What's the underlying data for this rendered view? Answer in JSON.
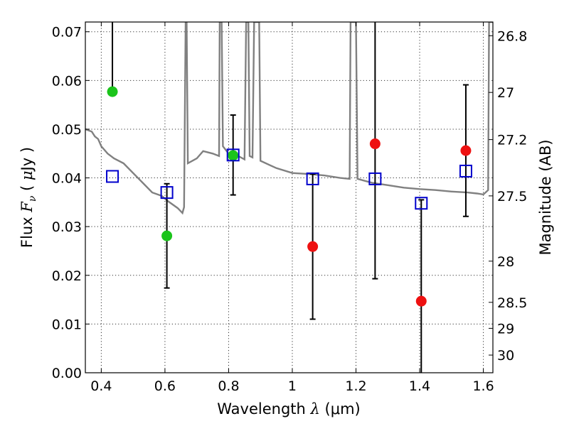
{
  "chart_data": {
    "type": "scatter",
    "xlabel": "Wavelength  λ (μm)",
    "xlabel_parts": {
      "text": "Wavelength  ",
      "symbol": "λ",
      "unit": "(μm)"
    },
    "ylabel": "Flux  Fν  ( μJy )",
    "ylabel_parts": {
      "text": "Flux  ",
      "symbol": "F",
      "sub": "ν",
      "open": "  ( ",
      "mu": "μ",
      "unit": "Jy )"
    },
    "y2label": "Magnitude (AB)",
    "xlim": [
      0.35,
      1.63
    ],
    "ylim": [
      0.0,
      0.072
    ],
    "grid": true,
    "x_ticks": [
      0.4,
      0.6,
      0.8,
      1.0,
      1.2,
      1.4,
      1.6
    ],
    "x_tick_labels": [
      "0.4",
      "0.6",
      "0.8",
      "1",
      "1.2",
      "1.4",
      "1.6"
    ],
    "y_ticks": [
      0.0,
      0.01,
      0.02,
      0.03,
      0.04,
      0.05,
      0.06,
      0.07
    ],
    "y_tick_labels": [
      "0.00",
      "0.01",
      "0.02",
      "0.03",
      "0.04",
      "0.05",
      "0.06",
      "0.07"
    ],
    "y2_ticks": [
      {
        "mag": 26.8,
        "label": "26.8"
      },
      {
        "mag": 27.0,
        "label": "27"
      },
      {
        "mag": 27.2,
        "label": "27.2"
      },
      {
        "mag": 27.5,
        "label": "27.5"
      },
      {
        "mag": 28.0,
        "label": "28"
      },
      {
        "mag": 28.5,
        "label": "28.5"
      },
      {
        "mag": 29.0,
        "label": "29"
      },
      {
        "mag": 30.0,
        "label": "30"
      }
    ],
    "observed_points": [
      {
        "x": 0.435,
        "y": 0.0577,
        "err_low": 0.0577,
        "err_high": 0.0723,
        "color": "#1bc41b"
      },
      {
        "x": 0.606,
        "y": 0.0281,
        "err_low": 0.0174,
        "err_high": 0.0388,
        "color": "#1bc41b"
      },
      {
        "x": 0.814,
        "y": 0.0446,
        "err_low": 0.0365,
        "err_high": 0.0529,
        "color": "#1bc41b"
      },
      {
        "x": 1.064,
        "y": 0.0259,
        "err_low": 0.011,
        "err_high": 0.0408,
        "color": "#ee1111"
      },
      {
        "x": 1.26,
        "y": 0.047,
        "err_low": 0.0193,
        "err_high": 0.075,
        "color": "#ee1111"
      },
      {
        "x": 1.405,
        "y": 0.0147,
        "err_low": 0.0,
        "err_high": 0.0355,
        "color": "#ee1111"
      },
      {
        "x": 1.545,
        "y": 0.0456,
        "err_low": 0.0321,
        "err_high": 0.0591,
        "color": "#ee1111"
      }
    ],
    "model_points": [
      {
        "x": 0.435,
        "y": 0.0403
      },
      {
        "x": 0.606,
        "y": 0.037
      },
      {
        "x": 0.814,
        "y": 0.0447
      },
      {
        "x": 1.064,
        "y": 0.0398
      },
      {
        "x": 1.26,
        "y": 0.0398
      },
      {
        "x": 1.405,
        "y": 0.0348
      },
      {
        "x": 1.545,
        "y": 0.0414
      }
    ],
    "spectrum": [
      [
        0.35,
        0.05
      ],
      [
        0.37,
        0.0495
      ],
      [
        0.38,
        0.0485
      ],
      [
        0.39,
        0.048
      ],
      [
        0.4,
        0.0465
      ],
      [
        0.42,
        0.045
      ],
      [
        0.44,
        0.044
      ],
      [
        0.47,
        0.043
      ],
      [
        0.5,
        0.041
      ],
      [
        0.53,
        0.039
      ],
      [
        0.56,
        0.037
      ],
      [
        0.59,
        0.0363
      ],
      [
        0.61,
        0.0352
      ],
      [
        0.64,
        0.0338
      ],
      [
        0.655,
        0.0328
      ],
      [
        0.66,
        0.034
      ],
      [
        0.665,
        0.072
      ],
      [
        0.668,
        0.072
      ],
      [
        0.672,
        0.043
      ],
      [
        0.7,
        0.044
      ],
      [
        0.72,
        0.0455
      ],
      [
        0.75,
        0.045
      ],
      [
        0.77,
        0.0445
      ],
      [
        0.772,
        0.072
      ],
      [
        0.778,
        0.072
      ],
      [
        0.782,
        0.0465
      ],
      [
        0.8,
        0.045
      ],
      [
        0.83,
        0.0445
      ],
      [
        0.85,
        0.0438
      ],
      [
        0.855,
        0.072
      ],
      [
        0.862,
        0.072
      ],
      [
        0.866,
        0.0445
      ],
      [
        0.875,
        0.0442
      ],
      [
        0.88,
        0.072
      ],
      [
        0.896,
        0.072
      ],
      [
        0.9,
        0.0435
      ],
      [
        0.95,
        0.042
      ],
      [
        1.0,
        0.041
      ],
      [
        1.05,
        0.0408
      ],
      [
        1.1,
        0.0405
      ],
      [
        1.15,
        0.04
      ],
      [
        1.18,
        0.0398
      ],
      [
        1.183,
        0.072
      ],
      [
        1.2,
        0.072
      ],
      [
        1.205,
        0.0398
      ],
      [
        1.25,
        0.039
      ],
      [
        1.3,
        0.0385
      ],
      [
        1.35,
        0.038
      ],
      [
        1.4,
        0.0377
      ],
      [
        1.45,
        0.0375
      ],
      [
        1.5,
        0.0372
      ],
      [
        1.55,
        0.037
      ],
      [
        1.58,
        0.0368
      ],
      [
        1.6,
        0.0366
      ],
      [
        1.615,
        0.0375
      ],
      [
        1.618,
        0.072
      ],
      [
        1.63,
        0.072
      ]
    ],
    "colors": {
      "spectrum": "#808080",
      "model_marker": "#0000cc",
      "errorbar": "#000000"
    }
  }
}
